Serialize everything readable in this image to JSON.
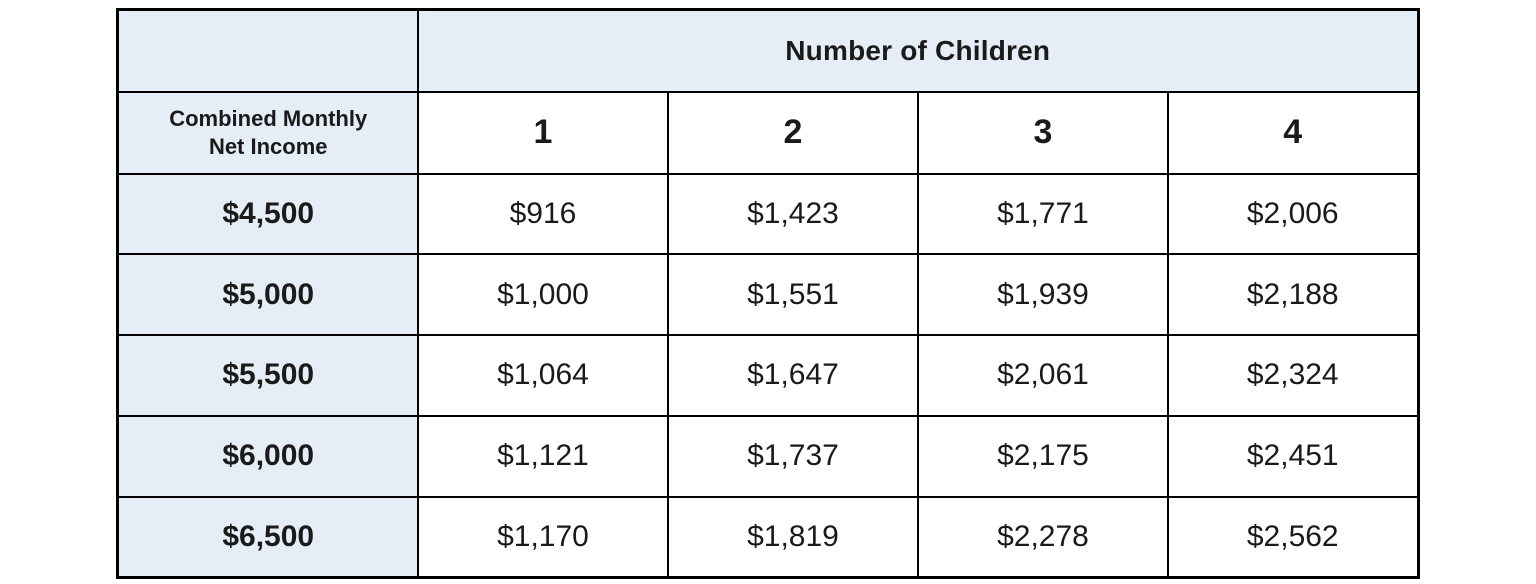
{
  "table": {
    "title": "Number of Children",
    "row_header_label": "Combined Monthly Net Income",
    "column_headers": [
      "1",
      "2",
      "3",
      "4"
    ],
    "rows": [
      {
        "income": "$4,500",
        "values": [
          "$916",
          "$1,423",
          "$1,771",
          "$2,006"
        ]
      },
      {
        "income": "$5,000",
        "values": [
          "$1,000",
          "$1,551",
          "$1,939",
          "$2,188"
        ]
      },
      {
        "income": "$5,500",
        "values": [
          "$1,064",
          "$1,647",
          "$2,061",
          "$2,324"
        ]
      },
      {
        "income": "$6,000",
        "values": [
          "$1,121",
          "$1,737",
          "$2,175",
          "$2,451"
        ]
      },
      {
        "income": "$6,500",
        "values": [
          "$1,170",
          "$1,819",
          "$2,278",
          "$2,562"
        ]
      }
    ],
    "colors": {
      "header_bg": "#e5eef7",
      "cell_bg": "#ffffff",
      "border": "#000000",
      "text": "#1a1a1a"
    }
  },
  "chart_data": {
    "type": "table",
    "title": "Number of Children",
    "row_label": "Combined Monthly Net Income",
    "columns": [
      "1",
      "2",
      "3",
      "4"
    ],
    "row_categories": [
      4500,
      5000,
      5500,
      6000,
      6500
    ],
    "series": [
      {
        "name": "1",
        "values": [
          916,
          1000,
          1064,
          1121,
          1170
        ]
      },
      {
        "name": "2",
        "values": [
          1423,
          1551,
          1647,
          1737,
          1819
        ]
      },
      {
        "name": "3",
        "values": [
          1771,
          1939,
          2061,
          2175,
          2278
        ]
      },
      {
        "name": "4",
        "values": [
          2006,
          2188,
          2324,
          2451,
          2562
        ]
      }
    ]
  }
}
